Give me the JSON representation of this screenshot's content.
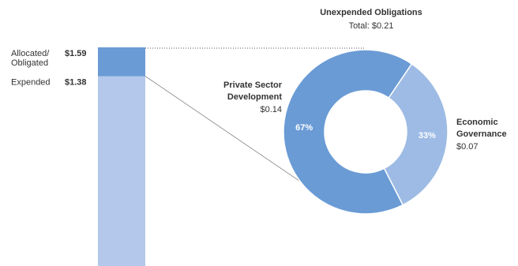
{
  "chart_data": [
    {
      "type": "stacked_bar",
      "ylim": [
        0,
        1.59
      ],
      "yticks": [
        {
          "value": 1.59,
          "label": "$1.59"
        },
        {
          "value": 1.38,
          "label": "$1.38"
        }
      ],
      "ytick_names": [
        "Allocated/ Obligated",
        "Expended"
      ],
      "series": [
        {
          "color": "#b3c8ea",
          "values": [
            1.38
          ]
        },
        {
          "color": "#6a9bd5",
          "values": [
            0.21
          ]
        }
      ]
    },
    {
      "type": "donut",
      "title": "Unexpended Obligations",
      "subtitle": "Total: $0.21",
      "categories": [
        "Private Sector Development",
        "Economic Governance"
      ],
      "values": [
        67,
        33
      ],
      "value_labels": [
        "67%",
        "33%"
      ],
      "amounts": [
        0.14,
        0.07
      ],
      "amount_labels": [
        "$0.14",
        "$0.07"
      ],
      "colors": [
        "#6a9bd5",
        "#9dbbe4"
      ]
    }
  ]
}
